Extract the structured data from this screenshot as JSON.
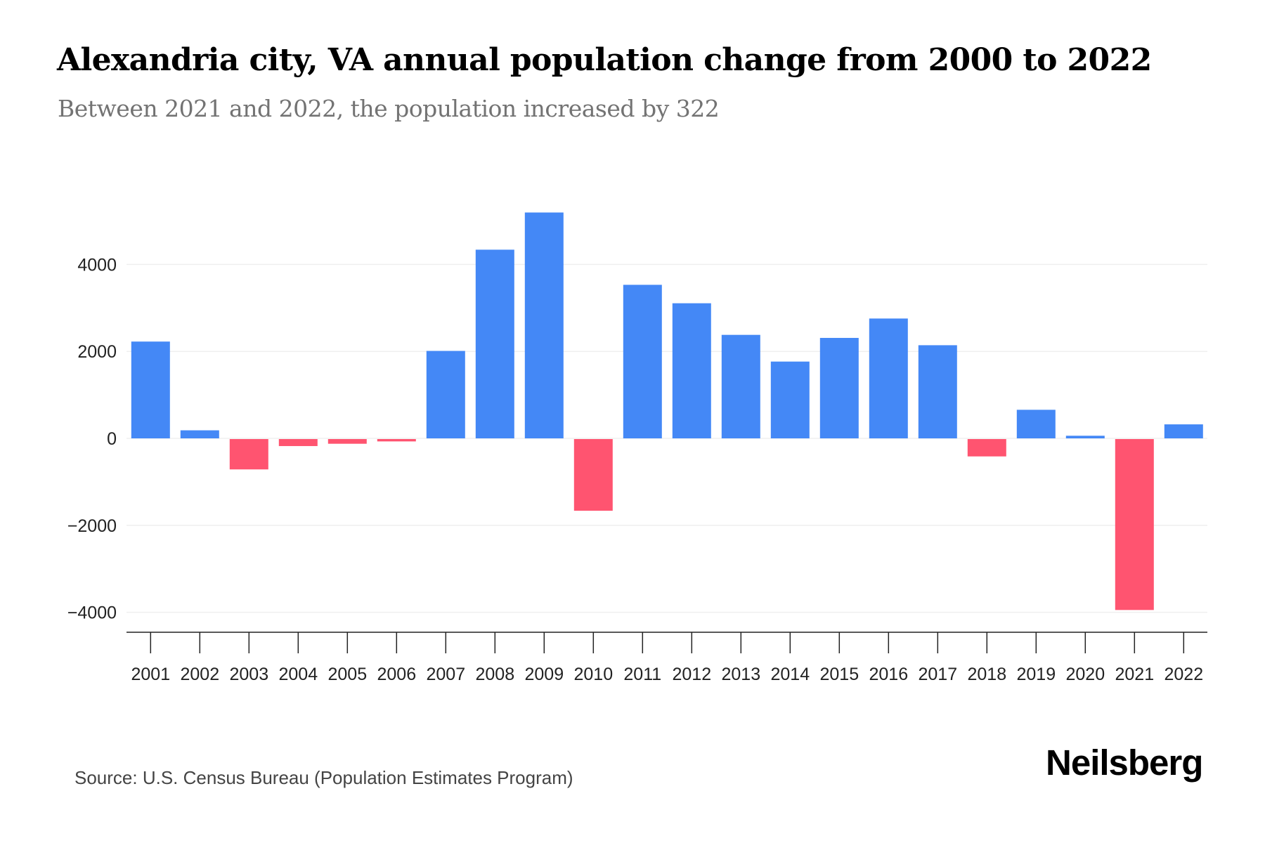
{
  "header": {
    "title": "Alexandria city, VA annual population change from 2000 to 2022",
    "subtitle": "Between 2021 and 2022, the population increased by 322"
  },
  "footer": {
    "source": "Source: U.S. Census Bureau (Population Estimates Program)",
    "logo": "Neilsberg"
  },
  "colors": {
    "positive": "#4488F6",
    "negative": "#FF5470",
    "gridline": "#EFEFEF",
    "axis": "#222222"
  },
  "chart_data": {
    "type": "bar",
    "title": "Alexandria city, VA annual population change from 2000 to 2022",
    "subtitle": "Between 2021 and 2022, the population increased by 322",
    "xlabel": "",
    "ylabel": "",
    "categories": [
      "2001",
      "2002",
      "2003",
      "2004",
      "2005",
      "2006",
      "2007",
      "2008",
      "2009",
      "2010",
      "2011",
      "2012",
      "2013",
      "2014",
      "2015",
      "2016",
      "2017",
      "2018",
      "2019",
      "2020",
      "2021",
      "2022"
    ],
    "values": [
      2226,
      185,
      -698,
      -161,
      -108,
      -54,
      2011,
      4339,
      5194,
      -1648,
      3531,
      3107,
      2380,
      1766,
      2310,
      2756,
      2142,
      -399,
      657,
      60,
      -3931,
      322
    ],
    "ylim": [
      -4400,
      5400
    ],
    "yticks": [
      4000,
      2000,
      0,
      -2000,
      -4000
    ],
    "ytick_labels": [
      "4000",
      "2000",
      "0",
      "−2000",
      "−4000"
    ],
    "grid": true,
    "legend": "none"
  }
}
